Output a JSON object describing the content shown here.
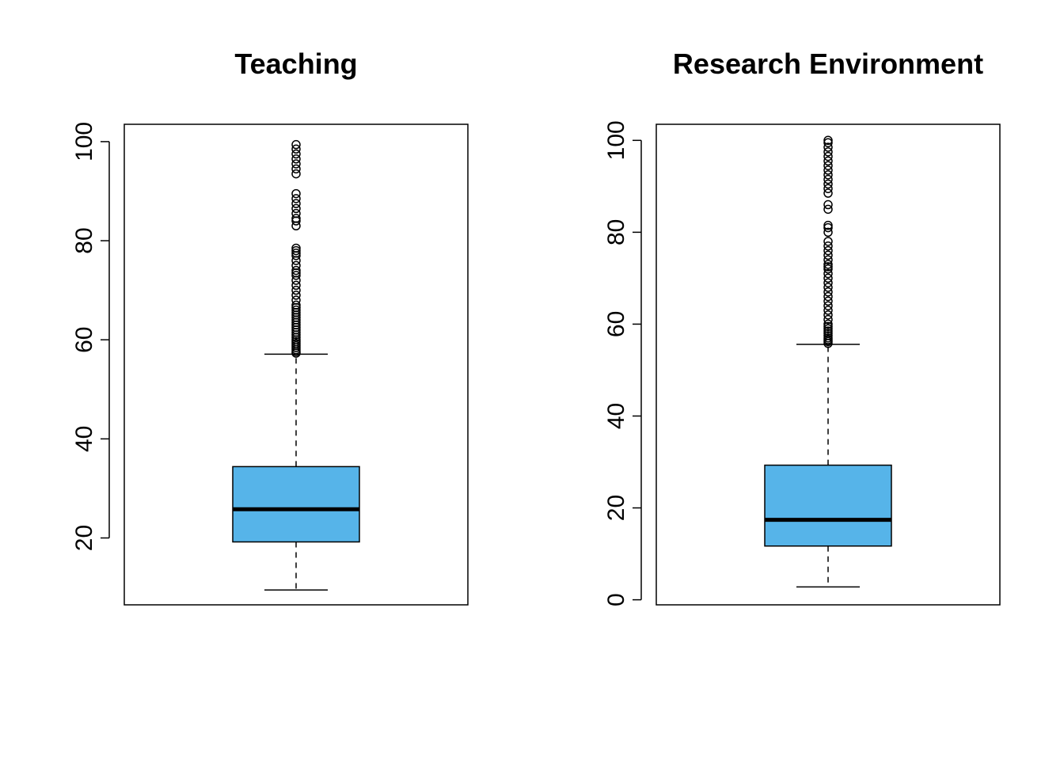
{
  "chart_data": [
    {
      "type": "boxplot",
      "title": "Teaching",
      "xlabel": "",
      "ylabel": "",
      "ylim": [
        6.5,
        103.5
      ],
      "yticks": [
        20,
        40,
        60,
        80,
        100
      ],
      "ytick_labels": [
        "20",
        "40",
        "60",
        "80",
        "100"
      ],
      "box": {
        "whisker_low": 9.5,
        "q1": 19.2,
        "median": 25.8,
        "q3": 34.4,
        "whisker_high": 57.1
      },
      "outliers": [
        57.3,
        57.6,
        58.0,
        58.4,
        58.8,
        59.2,
        59.6,
        60.0,
        60.5,
        61.0,
        61.5,
        62.0,
        62.5,
        63.0,
        63.5,
        64.0,
        64.5,
        65.0,
        65.5,
        66.0,
        66.5,
        67.0,
        68.0,
        69.0,
        70.0,
        71.0,
        72.0,
        73.0,
        73.5,
        74.0,
        75.0,
        76.0,
        77.0,
        77.5,
        78.0,
        78.5,
        83.0,
        84.0,
        84.5,
        85.5,
        86.5,
        87.5,
        88.5,
        89.5,
        93.5,
        94.5,
        95.5,
        96.5,
        97.5,
        98.5,
        99.4
      ],
      "box_color": "#56B4E9"
    },
    {
      "type": "boxplot",
      "title": "Research Environment",
      "xlabel": "",
      "ylabel": "",
      "ylim": [
        -1.1,
        103.5
      ],
      "yticks": [
        0,
        20,
        40,
        60,
        80,
        100
      ],
      "ytick_labels": [
        "0",
        "20",
        "40",
        "60",
        "80",
        "100"
      ],
      "box": {
        "whisker_low": 2.8,
        "q1": 11.7,
        "median": 17.4,
        "q3": 29.3,
        "whisker_high": 55.6
      },
      "outliers": [
        55.8,
        56.2,
        56.6,
        57.0,
        57.5,
        58.0,
        58.5,
        59.0,
        59.5,
        60.0,
        61.0,
        62.0,
        63.0,
        64.0,
        65.0,
        66.0,
        67.0,
        68.0,
        69.0,
        70.0,
        71.0,
        72.0,
        72.5,
        73.0,
        74.0,
        75.0,
        76.0,
        77.0,
        78.0,
        80.0,
        81.0,
        81.5,
        85.0,
        86.0,
        88.5,
        89.5,
        90.5,
        91.5,
        92.5,
        93.5,
        94.5,
        95.5,
        96.5,
        97.5,
        98.5,
        99.5,
        100.0
      ],
      "box_color": "#56B4E9"
    }
  ]
}
